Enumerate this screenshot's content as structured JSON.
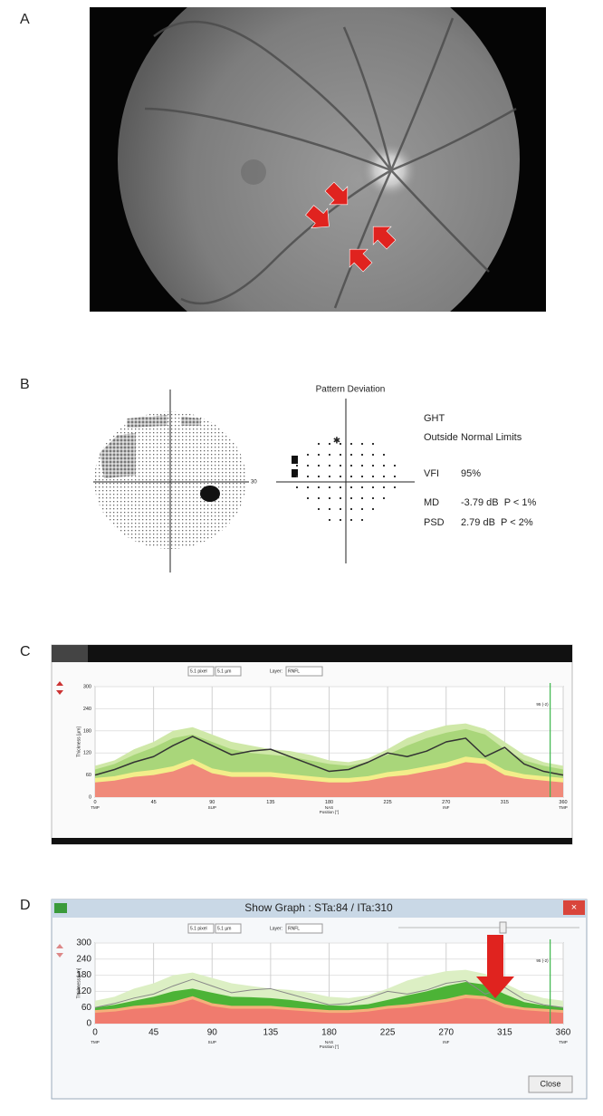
{
  "panel_labels": [
    "A",
    "B",
    "C",
    "D"
  ],
  "visual_field": {
    "scale_label": "30",
    "pattern_title": "Pattern Deviation",
    "ght_label": "GHT",
    "ght_value": "Outside Normal Limits",
    "vfi_label": "VFI",
    "vfi_value": "95%",
    "md_label": "MD",
    "md_value": "-3.79 dB  P < 1%",
    "psd_label": "PSD",
    "psd_value": "2.79 dB  P < 2%"
  },
  "chart_data": [
    {
      "type": "line",
      "toolbar": [
        "5.1 pixel",
        "5.1 µm"
      ],
      "layer_label": "Layer:",
      "layer": "RNFL",
      "marker_label": "95 (-2)",
      "cursor_x": 350,
      "xlabel": "Position [°]",
      "ylabel": "Thickness [µm]",
      "xlim": [
        0,
        360
      ],
      "xticks": [
        0,
        45,
        90,
        135,
        180,
        225,
        270,
        315,
        360
      ],
      "ylim": [
        0,
        300
      ],
      "yticks": [
        0,
        60,
        120,
        180,
        240,
        300
      ],
      "region_labels": [
        {
          "value": 0,
          "label": "TMP"
        },
        {
          "value": 90,
          "label": "SUP"
        },
        {
          "value": 180,
          "label": "NAS"
        },
        {
          "value": 270,
          "label": "INF"
        },
        {
          "value": 360,
          "label": "TMP"
        }
      ],
      "grid": true,
      "x": [
        0,
        15,
        30,
        45,
        60,
        75,
        90,
        105,
        120,
        135,
        150,
        165,
        180,
        195,
        210,
        225,
        240,
        255,
        270,
        285,
        300,
        315,
        330,
        345,
        360
      ],
      "series": [
        {
          "kind": "band",
          "color": "#cfe8a8",
          "values": [
            85,
            100,
            130,
            150,
            180,
            190,
            170,
            150,
            140,
            130,
            125,
            115,
            100,
            95,
            105,
            130,
            160,
            180,
            195,
            200,
            185,
            150,
            115,
            95,
            85
          ]
        },
        {
          "kind": "band",
          "color": "#a9d67a",
          "values": [
            75,
            90,
            115,
            135,
            160,
            170,
            150,
            130,
            120,
            115,
            110,
            100,
            90,
            85,
            95,
            115,
            140,
            160,
            175,
            185,
            170,
            130,
            100,
            85,
            75
          ]
        },
        {
          "kind": "band",
          "color": "#f3ee8a",
          "values": [
            52,
            57,
            68,
            74,
            84,
            104,
            78,
            68,
            68,
            68,
            62,
            57,
            52,
            52,
            57,
            68,
            74,
            84,
            94,
            110,
            104,
            74,
            62,
            57,
            52
          ]
        },
        {
          "kind": "band",
          "color": "#f08a7a",
          "values": [
            40,
            45,
            55,
            60,
            70,
            90,
            65,
            55,
            55,
            55,
            50,
            45,
            40,
            40,
            45,
            55,
            60,
            70,
            80,
            95,
            90,
            60,
            50,
            45,
            40
          ]
        },
        {
          "kind": "line",
          "color": "#333333",
          "values": [
            60,
            75,
            95,
            110,
            140,
            165,
            140,
            115,
            125,
            130,
            110,
            90,
            70,
            75,
            95,
            120,
            110,
            125,
            150,
            160,
            110,
            135,
            90,
            70,
            60
          ]
        }
      ]
    },
    {
      "type": "line",
      "title": "Show Graph : STa:84 / ITa:310",
      "button": "Close",
      "toolbar": [
        "5.1 pixel",
        "5.1 µm"
      ],
      "layer_label": "Layer:",
      "layer": "RNFL",
      "marker_label": "95 (-2)",
      "cursor_x": 350,
      "xlabel": "Position [°]",
      "ylabel": "Thickness [µm]",
      "xlim": [
        0,
        360
      ],
      "xticks": [
        0,
        45,
        90,
        135,
        180,
        225,
        270,
        315,
        360
      ],
      "ylim": [
        0,
        300
      ],
      "yticks": [
        0,
        60,
        120,
        180,
        240,
        300
      ],
      "region_labels": [
        {
          "value": 0,
          "label": "TMP"
        },
        {
          "value": 90,
          "label": "SUP"
        },
        {
          "value": 180,
          "label": "NAS"
        },
        {
          "value": 270,
          "label": "INF"
        },
        {
          "value": 360,
          "label": "TMP"
        }
      ],
      "grid": true,
      "x": [
        0,
        15,
        30,
        45,
        60,
        75,
        90,
        105,
        120,
        135,
        150,
        165,
        180,
        195,
        210,
        225,
        240,
        255,
        270,
        285,
        300,
        315,
        330,
        345,
        360
      ],
      "series": [
        {
          "kind": "band",
          "color": "#dcefc4",
          "values": [
            85,
            100,
            130,
            150,
            180,
            190,
            170,
            150,
            140,
            130,
            125,
            115,
            100,
            95,
            105,
            130,
            160,
            180,
            195,
            200,
            185,
            150,
            115,
            95,
            85
          ]
        },
        {
          "kind": "band",
          "color": "#4cb336",
          "values": [
            60,
            70,
            85,
            100,
            120,
            130,
            115,
            100,
            98,
            95,
            88,
            78,
            68,
            66,
            72,
            88,
            105,
            120,
            140,
            155,
            145,
            110,
            80,
            68,
            60
          ]
        },
        {
          "kind": "band",
          "color": "#f5b07a",
          "values": [
            50,
            55,
            66,
            72,
            82,
            102,
            76,
            66,
            66,
            66,
            60,
            55,
            50,
            50,
            55,
            66,
            72,
            82,
            92,
            108,
            102,
            72,
            60,
            55,
            50
          ]
        },
        {
          "kind": "band",
          "color": "#f07b6e",
          "values": [
            40,
            45,
            55,
            60,
            70,
            90,
            65,
            55,
            55,
            55,
            50,
            45,
            40,
            40,
            45,
            55,
            60,
            70,
            80,
            95,
            90,
            60,
            50,
            45,
            40
          ]
        },
        {
          "kind": "line",
          "color": "#888888",
          "values": [
            60,
            75,
            95,
            110,
            140,
            165,
            140,
            115,
            125,
            130,
            110,
            90,
            70,
            75,
            95,
            120,
            110,
            125,
            150,
            160,
            110,
            135,
            90,
            70,
            60
          ]
        }
      ]
    }
  ]
}
